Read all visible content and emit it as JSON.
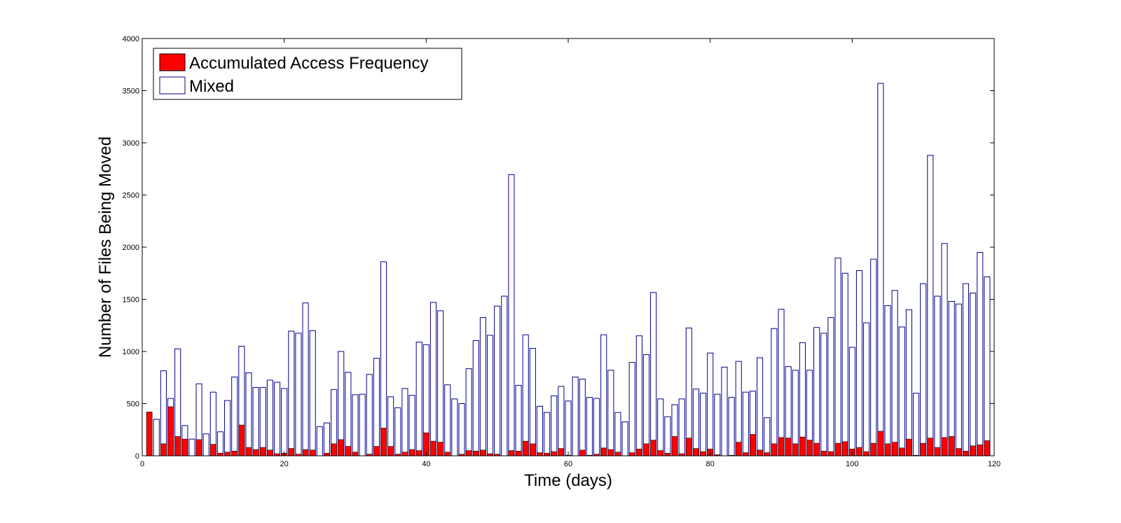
{
  "chart_data": {
    "type": "bar",
    "title": "",
    "xlabel": "Time (days)",
    "ylabel": "Number of Files Being Moved",
    "xlim": [
      0,
      120
    ],
    "ylim": [
      0,
      4000
    ],
    "xticks": [
      "0",
      "20",
      "40",
      "60",
      "80",
      "100",
      "120"
    ],
    "yticks": [
      "0",
      "500",
      "1000",
      "1500",
      "2000",
      "2500",
      "3000",
      "3500",
      "4000"
    ],
    "grid": false,
    "legend_position": "top-left",
    "legend": [
      "Accumulated Access Frequency",
      "Mixed"
    ],
    "colors": {
      "accumulated": "#ff0000",
      "accumulated_edge": "#000000",
      "mixed_edge": "#00008b",
      "mixed_fill": "#ffffff"
    },
    "x": [
      1,
      2,
      3,
      4,
      5,
      6,
      7,
      8,
      9,
      10,
      11,
      12,
      13,
      14,
      15,
      16,
      17,
      18,
      19,
      20,
      21,
      22,
      23,
      24,
      25,
      26,
      27,
      28,
      29,
      30,
      31,
      32,
      33,
      34,
      35,
      36,
      37,
      38,
      39,
      40,
      41,
      42,
      43,
      44,
      45,
      46,
      47,
      48,
      49,
      50,
      51,
      52,
      53,
      54,
      55,
      56,
      57,
      58,
      59,
      60,
      61,
      62,
      63,
      64,
      65,
      66,
      67,
      68,
      69,
      70,
      71,
      72,
      73,
      74,
      75,
      76,
      77,
      78,
      79,
      80,
      81,
      82,
      83,
      84,
      85,
      86,
      87,
      88,
      89,
      90,
      91,
      92,
      93,
      94,
      95,
      96,
      97,
      98,
      99,
      100,
      101,
      102,
      103,
      104,
      105,
      106,
      107,
      108,
      109,
      110,
      111,
      112,
      113,
      114,
      115,
      116,
      117,
      118,
      119
    ],
    "series": [
      {
        "name": "Accumulated Access Frequency",
        "values": [
          420,
          0,
          115,
          470,
          185,
          160,
          0,
          155,
          0,
          110,
          25,
          35,
          45,
          295,
          80,
          60,
          80,
          55,
          20,
          25,
          70,
          15,
          60,
          55,
          0,
          25,
          115,
          155,
          90,
          35,
          0,
          15,
          90,
          265,
          90,
          15,
          35,
          60,
          50,
          220,
          140,
          130,
          35,
          0,
          15,
          50,
          45,
          55,
          20,
          15,
          0,
          50,
          45,
          140,
          115,
          30,
          25,
          40,
          70,
          5,
          0,
          55,
          5,
          15,
          75,
          60,
          35,
          0,
          30,
          65,
          115,
          150,
          50,
          25,
          185,
          20,
          170,
          70,
          40,
          65,
          10,
          0,
          5,
          130,
          30,
          205,
          55,
          30,
          115,
          175,
          170,
          115,
          180,
          150,
          120,
          45,
          40,
          120,
          135,
          65,
          80,
          40,
          120,
          235,
          115,
          130,
          75,
          160,
          5,
          120,
          170,
          80,
          175,
          185,
          70,
          45,
          95,
          105,
          145
        ]
      },
      {
        "name": "Mixed",
        "values": [
          0,
          350,
          815,
          550,
          1025,
          290,
          160,
          690,
          210,
          610,
          230,
          530,
          755,
          1050,
          795,
          655,
          655,
          725,
          705,
          645,
          1195,
          1175,
          1465,
          1200,
          280,
          315,
          635,
          1000,
          800,
          585,
          590,
          780,
          935,
          1860,
          565,
          460,
          645,
          580,
          1090,
          1065,
          1470,
          1390,
          680,
          545,
          500,
          835,
          1105,
          1325,
          1155,
          1435,
          1530,
          2695,
          675,
          1160,
          1030,
          475,
          415,
          575,
          665,
          525,
          755,
          735,
          560,
          550,
          1160,
          820,
          415,
          325,
          895,
          1150,
          970,
          1565,
          545,
          375,
          490,
          545,
          1225,
          640,
          600,
          985,
          590,
          850,
          560,
          905,
          610,
          620,
          940,
          365,
          1220,
          1405,
          855,
          820,
          1085,
          820,
          1230,
          1175,
          1325,
          1895,
          1750,
          1040,
          1775,
          1275,
          1885,
          3570,
          1440,
          1585,
          1235,
          1400,
          600,
          1650,
          2880,
          1530,
          2035,
          1480,
          1455,
          1650,
          1560,
          1950,
          1715
        ]
      }
    ]
  }
}
